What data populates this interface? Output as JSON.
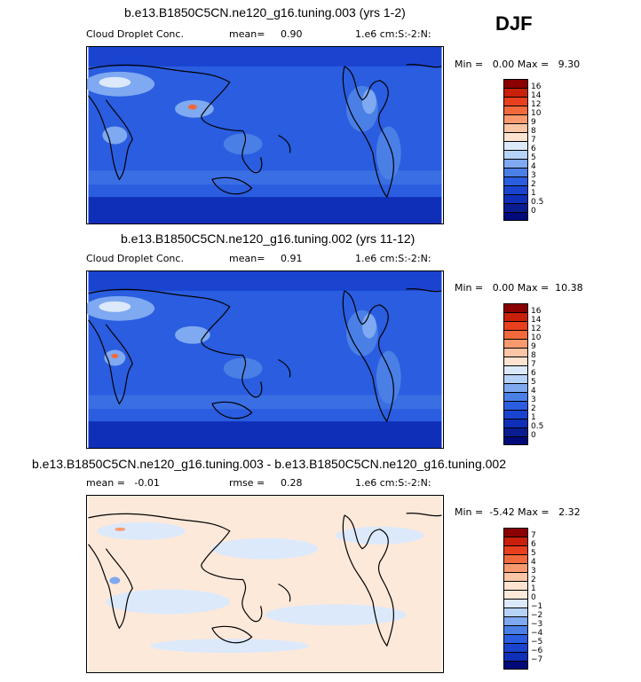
{
  "season": "DJF",
  "panels": [
    {
      "title": "b.e13.B1850C5CN.ne120_g16.tuning.003 (yrs 1-2)",
      "left_label": "Cloud Droplet Conc.",
      "mid_label": "mean=",
      "mid_value": "0.90",
      "units": "1.e6 cm:S:-2:N:",
      "minmax": "Min =   0.00 Max =   9.30",
      "levels": [
        "16",
        "14",
        "12",
        "10",
        "9",
        "8",
        "7",
        "6",
        "5",
        "4",
        "3",
        "2",
        "1",
        "0.5",
        "0"
      ],
      "colors": [
        "#8b0000",
        "#c8200a",
        "#e8401e",
        "#f26a3c",
        "#f89a6e",
        "#fcc5a6",
        "#fde3d0",
        "#dce9fb",
        "#b7d2f7",
        "#7fa9f0",
        "#4a7fe6",
        "#2a5de0",
        "#1a44d0",
        "#0f2fb8",
        "#0a1d90",
        "#000a7a"
      ]
    },
    {
      "title": "b.e13.B1850C5CN.ne120_g16.tuning.002 (yrs 11-12)",
      "left_label": "Cloud Droplet Conc.",
      "mid_label": "mean=",
      "mid_value": "0.91",
      "units": "1.e6 cm:S:-2:N:",
      "minmax": "Min =   0.00 Max =  10.38",
      "levels": [
        "16",
        "14",
        "12",
        "10",
        "9",
        "8",
        "7",
        "6",
        "5",
        "4",
        "3",
        "2",
        "1",
        "0.5",
        "0"
      ],
      "colors": [
        "#8b0000",
        "#c8200a",
        "#e8401e",
        "#f26a3c",
        "#f89a6e",
        "#fcc5a6",
        "#fde3d0",
        "#dce9fb",
        "#b7d2f7",
        "#7fa9f0",
        "#4a7fe6",
        "#2a5de0",
        "#1a44d0",
        "#0f2fb8",
        "#0a1d90",
        "#000a7a"
      ]
    },
    {
      "title": "b.e13.B1850C5CN.ne120_g16.tuning.003 - b.e13.B1850C5CN.ne120_g16.tuning.002",
      "left_label": "mean =   -0.01",
      "mid_label": "rmse =",
      "mid_value": "0.28",
      "units": "1.e6 cm:S:-2:N:",
      "minmax": "Min =  -5.42 Max =   2.32",
      "levels": [
        "7",
        "6",
        "5",
        "4",
        "3",
        "2",
        "1",
        "0",
        "−1",
        "−2",
        "−3",
        "−4",
        "−5",
        "−6",
        "−7"
      ],
      "colors": [
        "#8b0000",
        "#c8200a",
        "#e8401e",
        "#f26a3c",
        "#f89a6e",
        "#fcc5a6",
        "#fde3d0",
        "#fde9da",
        "#dce9fb",
        "#b7d2f7",
        "#7fa9f0",
        "#4a7fe6",
        "#2a5de0",
        "#1a44d0",
        "#0f2fb8",
        "#000a7a"
      ]
    }
  ],
  "chart_data": [
    {
      "type": "heatmap",
      "title": "b.e13.B1850C5CN.ne120_g16.tuning.003 (yrs 1-2)",
      "variable": "Cloud Droplet Conc.",
      "season": "DJF",
      "units": "1.e6 cm:S:-2:N:",
      "mean": 0.9,
      "min": 0.0,
      "max": 9.3,
      "contour_levels": [
        0,
        0.5,
        1,
        2,
        3,
        4,
        5,
        6,
        7,
        8,
        9,
        10,
        12,
        14,
        16
      ]
    },
    {
      "type": "heatmap",
      "title": "b.e13.B1850C5CN.ne120_g16.tuning.002 (yrs 11-12)",
      "variable": "Cloud Droplet Conc.",
      "season": "DJF",
      "units": "1.e6 cm:S:-2:N:",
      "mean": 0.91,
      "min": 0.0,
      "max": 10.38,
      "contour_levels": [
        0,
        0.5,
        1,
        2,
        3,
        4,
        5,
        6,
        7,
        8,
        9,
        10,
        12,
        14,
        16
      ]
    },
    {
      "type": "heatmap",
      "title": "b.e13.B1850C5CN.ne120_g16.tuning.003 - b.e13.B1850C5CN.ne120_g16.tuning.002",
      "season": "DJF",
      "units": "1.e6 cm:S:-2:N:",
      "mean": -0.01,
      "rmse": 0.28,
      "min": -5.42,
      "max": 2.32,
      "contour_levels": [
        -7,
        -6,
        -5,
        -4,
        -3,
        -2,
        -1,
        0,
        1,
        2,
        3,
        4,
        5,
        6,
        7
      ]
    }
  ]
}
